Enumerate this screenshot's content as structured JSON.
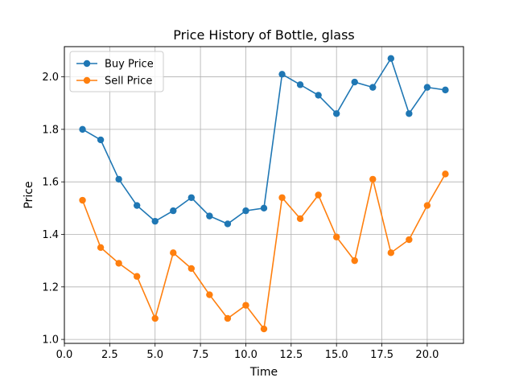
{
  "chart_data": {
    "type": "line",
    "title": "Price History of Bottle, glass",
    "xlabel": "Time",
    "ylabel": "Price",
    "xlim": [
      0.0,
      22.0
    ],
    "ylim": [
      0.985,
      2.115
    ],
    "x_ticks": [
      0.0,
      2.5,
      5.0,
      7.5,
      10.0,
      12.5,
      15.0,
      17.5,
      20.0
    ],
    "x_tick_labels": [
      "0.0",
      "2.5",
      "5.0",
      "7.5",
      "10.0",
      "12.5",
      "15.0",
      "17.5",
      "20.0"
    ],
    "y_ticks": [
      1.0,
      1.2,
      1.4,
      1.6,
      1.8,
      2.0
    ],
    "y_tick_labels": [
      "1.0",
      "1.2",
      "1.4",
      "1.6",
      "1.8",
      "2.0"
    ],
    "grid": true,
    "legend_position": "upper-left",
    "x": [
      1,
      2,
      3,
      4,
      5,
      6,
      7,
      8,
      9,
      10,
      11,
      12,
      13,
      14,
      15,
      16,
      17,
      18,
      19,
      20,
      21
    ],
    "series": [
      {
        "name": "Buy Price",
        "color": "#1f77b4",
        "marker": "circle",
        "values": [
          1.8,
          1.76,
          1.61,
          1.51,
          1.45,
          1.49,
          1.54,
          1.47,
          1.44,
          1.49,
          1.5,
          2.01,
          1.97,
          1.93,
          1.86,
          1.98,
          1.96,
          2.07,
          1.86,
          1.96,
          1.95
        ]
      },
      {
        "name": "Sell Price",
        "color": "#ff7f0e",
        "marker": "circle",
        "values": [
          1.53,
          1.35,
          1.29,
          1.24,
          1.08,
          1.33,
          1.27,
          1.17,
          1.08,
          1.13,
          1.04,
          1.54,
          1.46,
          1.55,
          1.39,
          1.3,
          1.61,
          1.33,
          1.38,
          1.51,
          1.63
        ]
      }
    ]
  }
}
